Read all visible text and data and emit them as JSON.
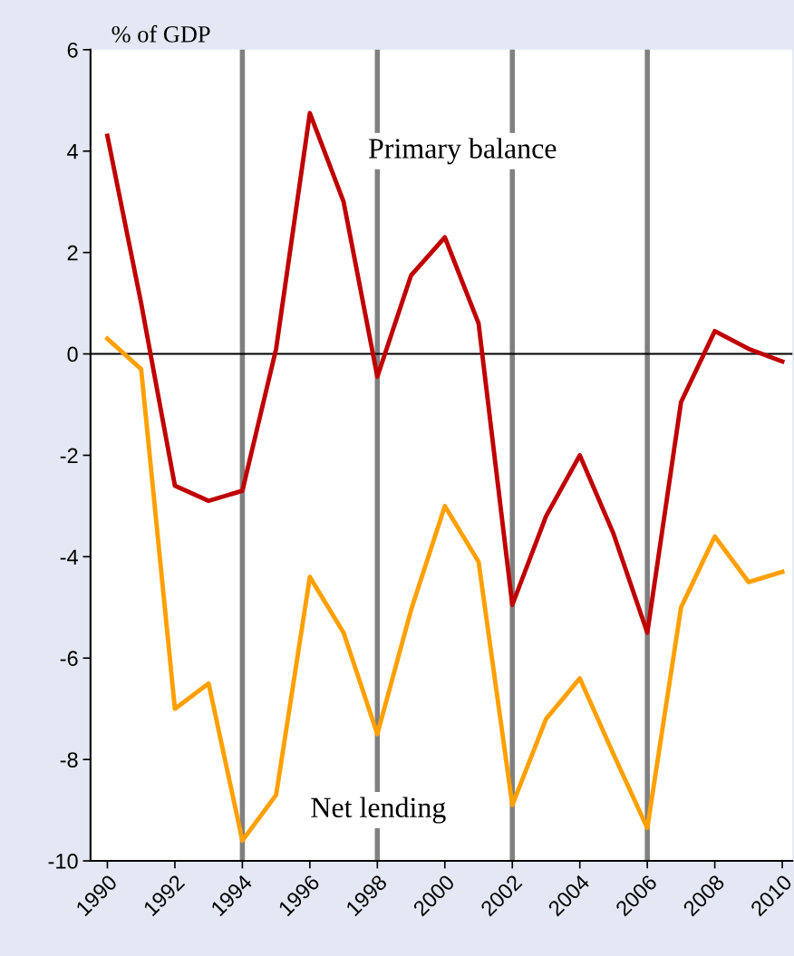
{
  "chart_data": {
    "type": "line",
    "ylabel": "% of GDP",
    "x": [
      1990,
      1991,
      1992,
      1993,
      1994,
      1995,
      1996,
      1997,
      1998,
      1999,
      2000,
      2001,
      2002,
      2003,
      2004,
      2005,
      2006,
      2007,
      2008,
      2009,
      2010
    ],
    "series": [
      {
        "color": "#c00000",
        "values": [
          4.3,
          1.0,
          -2.6,
          -2.9,
          -2.7,
          0.1,
          4.75,
          3.0,
          -0.45,
          1.55,
          2.3,
          0.6,
          -4.95,
          -3.2,
          -2.0,
          -3.55,
          -5.5,
          -0.95,
          0.45,
          0.1,
          -0.15
        ]
      },
      {
        "color": "#ffa000",
        "values": [
          0.3,
          -0.3,
          -7.0,
          -6.5,
          -9.6,
          -8.7,
          -4.4,
          -5.5,
          -7.5,
          -5.05,
          -3.0,
          -4.1,
          -8.9,
          -7.2,
          -6.4,
          -7.9,
          -9.35,
          -5.0,
          -3.6,
          -4.5,
          -4.3
        ]
      }
    ],
    "annotations": [
      "Primary balance",
      "Net lending"
    ],
    "ref_lines": [
      {
        "axis": "x",
        "value": 1994,
        "color": "#808080"
      },
      {
        "axis": "x",
        "value": 1998,
        "color": "#808080"
      },
      {
        "axis": "x",
        "value": 2002,
        "color": "#808080"
      },
      {
        "axis": "x",
        "value": 2006,
        "color": "#808080"
      },
      {
        "axis": "y",
        "value": 0,
        "color": "#000000"
      }
    ],
    "xlim": [
      1989.5,
      2010.3
    ],
    "ylim": [
      -10,
      6
    ],
    "xticks": [
      1990,
      1992,
      1994,
      1996,
      1998,
      2000,
      2002,
      2004,
      2006,
      2008,
      2010
    ],
    "yticks": [
      -10,
      -8,
      -6,
      -4,
      -2,
      0,
      2,
      4,
      6
    ],
    "grid": false,
    "legend": false,
    "marker": "none",
    "line_style": "solid"
  }
}
